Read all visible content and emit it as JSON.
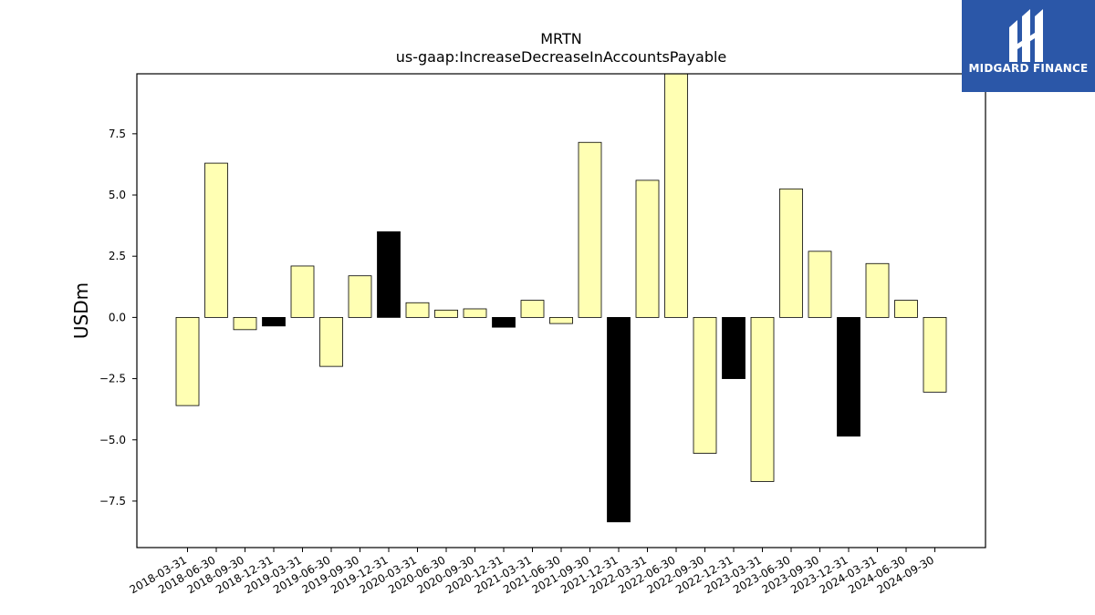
{
  "logo": {
    "text": "MIDGARD FINANCE"
  },
  "chart_data": {
    "type": "bar",
    "title": "MRTN",
    "subtitle": "us-gaap:IncreaseDecreaseInAccountsPayable",
    "ylabel": "USDm",
    "xlabel": "",
    "ylim": [
      -9.4,
      9.95
    ],
    "yticks": [
      -7.5,
      -5.0,
      -2.5,
      0.0,
      2.5,
      5.0,
      7.5
    ],
    "ytick_labels": [
      "−7.5",
      "−5.0",
      "−2.5",
      "0.0",
      "2.5",
      "5.0",
      "7.5"
    ],
    "grid": false,
    "legend": "none",
    "colors": {
      "fill": "#ffffb3",
      "negative_highlight": "#000000",
      "edge": "#000000"
    },
    "categories": [
      "2018-03-31",
      "2018-06-30",
      "2018-09-30",
      "2018-12-31",
      "2019-03-31",
      "2019-06-30",
      "2019-09-30",
      "2019-12-31",
      "2020-03-31",
      "2020-06-30",
      "2020-09-30",
      "2020-12-31",
      "2021-03-31",
      "2021-06-30",
      "2021-09-30",
      "2021-12-31",
      "2022-03-31",
      "2022-06-30",
      "2022-09-30",
      "2022-12-31",
      "2023-03-31",
      "2023-06-30",
      "2023-09-30",
      "2023-12-31",
      "2024-03-31",
      "2024-06-30",
      "2024-09-30"
    ],
    "values": [
      -3.6,
      6.3,
      -0.5,
      -0.35,
      2.1,
      -2.0,
      1.7,
      3.5,
      0.6,
      0.3,
      0.35,
      -0.4,
      0.7,
      -0.25,
      7.15,
      -8.35,
      5.6,
      9.95,
      -5.55,
      -2.5,
      -6.7,
      5.25,
      2.7,
      -4.85,
      2.2,
      0.7,
      -3.05
    ],
    "highlight": [
      false,
      false,
      false,
      true,
      false,
      false,
      false,
      true,
      false,
      false,
      false,
      true,
      false,
      false,
      false,
      true,
      false,
      false,
      false,
      true,
      false,
      false,
      false,
      true,
      false,
      false,
      false
    ]
  }
}
